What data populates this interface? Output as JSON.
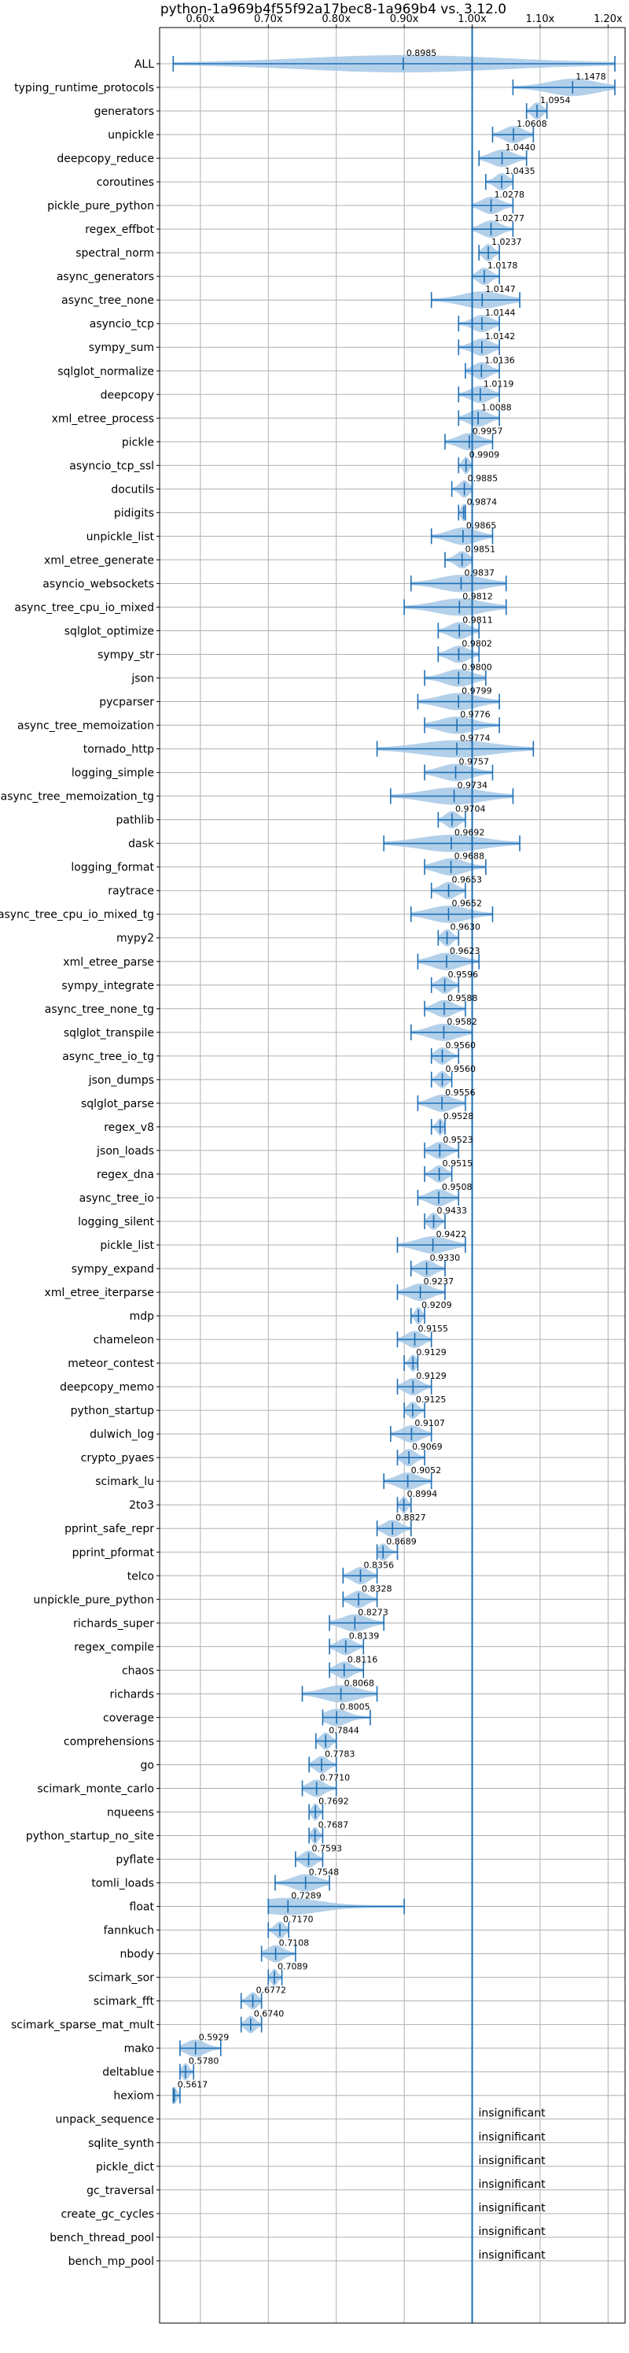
{
  "chart_data": {
    "type": "violin",
    "title": "python-1a969b4f55f92a17bec8-1a969b4 vs. 3.12.0",
    "xlabel": "",
    "ylabel": "",
    "xlim": [
      0.54,
      1.225
    ],
    "x_ticks": [
      0.6,
      0.7,
      0.8,
      0.9,
      1.0,
      1.1,
      1.2
    ],
    "x_tick_labels": [
      "0.60x",
      "0.70x",
      "0.80x",
      "0.90x",
      "1.00x",
      "1.10x",
      "1.20x"
    ],
    "reference_line": 1.0,
    "grid": true,
    "colors": {
      "violin": "#a6c8e6",
      "errorbar": "#1f6fb4",
      "reference": "#1f6fb4"
    },
    "insignificant_label": "insignificant",
    "benchmarks": [
      {
        "name": "ALL",
        "mean": 0.8985,
        "min": 0.56,
        "max": 1.21
      },
      {
        "name": "typing_runtime_protocols",
        "mean": 1.1478,
        "min": 1.06,
        "max": 1.21
      },
      {
        "name": "generators",
        "mean": 1.0954,
        "min": 1.08,
        "max": 1.11
      },
      {
        "name": "unpickle",
        "mean": 1.0608,
        "min": 1.03,
        "max": 1.09
      },
      {
        "name": "deepcopy_reduce",
        "mean": 1.044,
        "min": 1.01,
        "max": 1.08
      },
      {
        "name": "coroutines",
        "mean": 1.0435,
        "min": 1.02,
        "max": 1.06
      },
      {
        "name": "pickle_pure_python",
        "mean": 1.0278,
        "min": 1.0,
        "max": 1.06
      },
      {
        "name": "regex_effbot",
        "mean": 1.0277,
        "min": 1.0,
        "max": 1.06
      },
      {
        "name": "spectral_norm",
        "mean": 1.0237,
        "min": 1.01,
        "max": 1.04
      },
      {
        "name": "async_generators",
        "mean": 1.0178,
        "min": 1.0,
        "max": 1.04
      },
      {
        "name": "async_tree_none",
        "mean": 1.0147,
        "min": 0.94,
        "max": 1.07
      },
      {
        "name": "asyncio_tcp",
        "mean": 1.0144,
        "min": 0.98,
        "max": 1.04
      },
      {
        "name": "sympy_sum",
        "mean": 1.0142,
        "min": 0.98,
        "max": 1.04
      },
      {
        "name": "sqlglot_normalize",
        "mean": 1.0136,
        "min": 0.99,
        "max": 1.04
      },
      {
        "name": "deepcopy",
        "mean": 1.0119,
        "min": 0.98,
        "max": 1.04
      },
      {
        "name": "xml_etree_process",
        "mean": 1.0088,
        "min": 0.98,
        "max": 1.04
      },
      {
        "name": "pickle",
        "mean": 0.9957,
        "min": 0.96,
        "max": 1.03
      },
      {
        "name": "asyncio_tcp_ssl",
        "mean": 0.9909,
        "min": 0.98,
        "max": 1.0
      },
      {
        "name": "docutils",
        "mean": 0.9885,
        "min": 0.97,
        "max": 1.0
      },
      {
        "name": "pidigits",
        "mean": 0.9874,
        "min": 0.98,
        "max": 0.99
      },
      {
        "name": "unpickle_list",
        "mean": 0.9865,
        "min": 0.94,
        "max": 1.03
      },
      {
        "name": "xml_etree_generate",
        "mean": 0.9851,
        "min": 0.96,
        "max": 1.0
      },
      {
        "name": "asyncio_websockets",
        "mean": 0.9837,
        "min": 0.91,
        "max": 1.05
      },
      {
        "name": "async_tree_cpu_io_mixed",
        "mean": 0.9812,
        "min": 0.9,
        "max": 1.05
      },
      {
        "name": "sqlglot_optimize",
        "mean": 0.9811,
        "min": 0.95,
        "max": 1.01
      },
      {
        "name": "sympy_str",
        "mean": 0.9802,
        "min": 0.95,
        "max": 1.01
      },
      {
        "name": "json",
        "mean": 0.98,
        "min": 0.93,
        "max": 1.02
      },
      {
        "name": "pycparser",
        "mean": 0.9799,
        "min": 0.92,
        "max": 1.04
      },
      {
        "name": "async_tree_memoization",
        "mean": 0.9776,
        "min": 0.93,
        "max": 1.04
      },
      {
        "name": "tornado_http",
        "mean": 0.9774,
        "min": 0.86,
        "max": 1.09
      },
      {
        "name": "logging_simple",
        "mean": 0.9757,
        "min": 0.93,
        "max": 1.03
      },
      {
        "name": "async_tree_memoization_tg",
        "mean": 0.9734,
        "min": 0.88,
        "max": 1.06
      },
      {
        "name": "pathlib",
        "mean": 0.9704,
        "min": 0.95,
        "max": 0.99
      },
      {
        "name": "dask",
        "mean": 0.9692,
        "min": 0.87,
        "max": 1.07
      },
      {
        "name": "logging_format",
        "mean": 0.9688,
        "min": 0.93,
        "max": 1.02
      },
      {
        "name": "raytrace",
        "mean": 0.9653,
        "min": 0.94,
        "max": 0.99
      },
      {
        "name": "async_tree_cpu_io_mixed_tg",
        "mean": 0.9652,
        "min": 0.91,
        "max": 1.03
      },
      {
        "name": "mypy2",
        "mean": 0.963,
        "min": 0.95,
        "max": 0.98
      },
      {
        "name": "xml_etree_parse",
        "mean": 0.9623,
        "min": 0.92,
        "max": 1.01
      },
      {
        "name": "sympy_integrate",
        "mean": 0.9596,
        "min": 0.94,
        "max": 0.98
      },
      {
        "name": "async_tree_none_tg",
        "mean": 0.9588,
        "min": 0.93,
        "max": 0.99
      },
      {
        "name": "sqlglot_transpile",
        "mean": 0.9582,
        "min": 0.91,
        "max": 1.0
      },
      {
        "name": "async_tree_io_tg",
        "mean": 0.956,
        "min": 0.94,
        "max": 0.98
      },
      {
        "name": "json_dumps",
        "mean": 0.956,
        "min": 0.94,
        "max": 0.97
      },
      {
        "name": "sqlglot_parse",
        "mean": 0.9556,
        "min": 0.92,
        "max": 0.99
      },
      {
        "name": "regex_v8",
        "mean": 0.9528,
        "min": 0.94,
        "max": 0.96
      },
      {
        "name": "json_loads",
        "mean": 0.9523,
        "min": 0.93,
        "max": 0.98
      },
      {
        "name": "regex_dna",
        "mean": 0.9515,
        "min": 0.93,
        "max": 0.97
      },
      {
        "name": "async_tree_io",
        "mean": 0.9508,
        "min": 0.92,
        "max": 0.98
      },
      {
        "name": "logging_silent",
        "mean": 0.9433,
        "min": 0.93,
        "max": 0.96
      },
      {
        "name": "pickle_list",
        "mean": 0.9422,
        "min": 0.89,
        "max": 0.99
      },
      {
        "name": "sympy_expand",
        "mean": 0.933,
        "min": 0.91,
        "max": 0.96
      },
      {
        "name": "xml_etree_iterparse",
        "mean": 0.9237,
        "min": 0.89,
        "max": 0.96
      },
      {
        "name": "mdp",
        "mean": 0.9209,
        "min": 0.91,
        "max": 0.93
      },
      {
        "name": "chameleon",
        "mean": 0.9155,
        "min": 0.89,
        "max": 0.94
      },
      {
        "name": "meteor_contest",
        "mean": 0.9129,
        "min": 0.9,
        "max": 0.92
      },
      {
        "name": "deepcopy_memo",
        "mean": 0.9129,
        "min": 0.89,
        "max": 0.94
      },
      {
        "name": "python_startup",
        "mean": 0.9125,
        "min": 0.9,
        "max": 0.93
      },
      {
        "name": "dulwich_log",
        "mean": 0.9107,
        "min": 0.88,
        "max": 0.94
      },
      {
        "name": "crypto_pyaes",
        "mean": 0.9069,
        "min": 0.89,
        "max": 0.93
      },
      {
        "name": "scimark_lu",
        "mean": 0.9052,
        "min": 0.87,
        "max": 0.94
      },
      {
        "name": "2to3",
        "mean": 0.8994,
        "min": 0.89,
        "max": 0.91
      },
      {
        "name": "pprint_safe_repr",
        "mean": 0.8827,
        "min": 0.86,
        "max": 0.91
      },
      {
        "name": "pprint_pformat",
        "mean": 0.8689,
        "min": 0.86,
        "max": 0.89
      },
      {
        "name": "telco",
        "mean": 0.8356,
        "min": 0.81,
        "max": 0.86
      },
      {
        "name": "unpickle_pure_python",
        "mean": 0.8328,
        "min": 0.81,
        "max": 0.86
      },
      {
        "name": "richards_super",
        "mean": 0.8273,
        "min": 0.79,
        "max": 0.87
      },
      {
        "name": "regex_compile",
        "mean": 0.8139,
        "min": 0.79,
        "max": 0.84
      },
      {
        "name": "chaos",
        "mean": 0.8116,
        "min": 0.79,
        "max": 0.84
      },
      {
        "name": "richards",
        "mean": 0.8068,
        "min": 0.75,
        "max": 0.86
      },
      {
        "name": "coverage",
        "mean": 0.8005,
        "min": 0.78,
        "max": 0.85
      },
      {
        "name": "comprehensions",
        "mean": 0.7844,
        "min": 0.77,
        "max": 0.8
      },
      {
        "name": "go",
        "mean": 0.7783,
        "min": 0.76,
        "max": 0.8
      },
      {
        "name": "scimark_monte_carlo",
        "mean": 0.771,
        "min": 0.75,
        "max": 0.8
      },
      {
        "name": "nqueens",
        "mean": 0.7692,
        "min": 0.76,
        "max": 0.78
      },
      {
        "name": "python_startup_no_site",
        "mean": 0.7687,
        "min": 0.76,
        "max": 0.78
      },
      {
        "name": "pyflate",
        "mean": 0.7593,
        "min": 0.74,
        "max": 0.78
      },
      {
        "name": "tomli_loads",
        "mean": 0.7548,
        "min": 0.71,
        "max": 0.79
      },
      {
        "name": "float",
        "mean": 0.7289,
        "min": 0.7,
        "max": 0.9
      },
      {
        "name": "fannkuch",
        "mean": 0.717,
        "min": 0.7,
        "max": 0.73
      },
      {
        "name": "nbody",
        "mean": 0.7108,
        "min": 0.69,
        "max": 0.74
      },
      {
        "name": "scimark_sor",
        "mean": 0.7089,
        "min": 0.7,
        "max": 0.72
      },
      {
        "name": "scimark_fft",
        "mean": 0.6772,
        "min": 0.66,
        "max": 0.69
      },
      {
        "name": "scimark_sparse_mat_mult",
        "mean": 0.674,
        "min": 0.66,
        "max": 0.69
      },
      {
        "name": "mako",
        "mean": 0.5929,
        "min": 0.57,
        "max": 0.63
      },
      {
        "name": "deltablue",
        "mean": 0.578,
        "min": 0.57,
        "max": 0.59
      },
      {
        "name": "hexiom",
        "mean": 0.5617,
        "min": 0.56,
        "max": 0.57
      },
      {
        "name": "unpack_sequence",
        "significant": false
      },
      {
        "name": "sqlite_synth",
        "significant": false
      },
      {
        "name": "pickle_dict",
        "significant": false
      },
      {
        "name": "gc_traversal",
        "significant": false
      },
      {
        "name": "create_gc_cycles",
        "significant": false
      },
      {
        "name": "bench_thread_pool",
        "significant": false
      },
      {
        "name": "bench_mp_pool",
        "significant": false
      }
    ]
  }
}
